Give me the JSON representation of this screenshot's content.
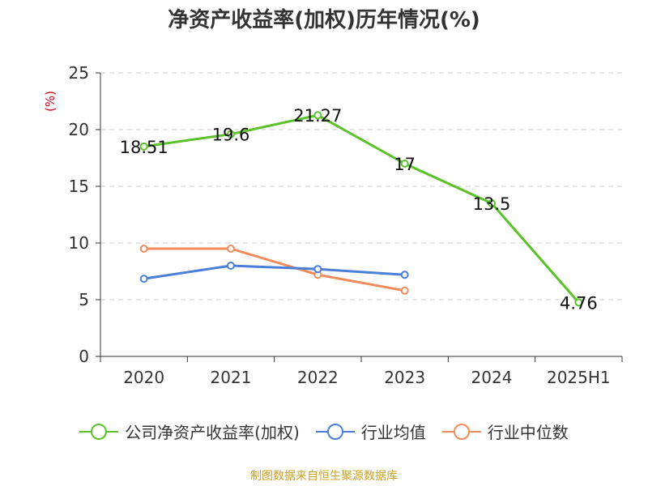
{
  "title": "净资产收益率(加权)历年情况(%)",
  "source": "制图数据来自恒生聚源数据库",
  "chart_data": {
    "type": "line",
    "title": "净资产收益率(加权)历年情况(%)",
    "ylabel": "(%)",
    "xlabel": "",
    "categories": [
      "2020",
      "2021",
      "2022",
      "2023",
      "2024",
      "2025H1"
    ],
    "ylim": [
      0,
      25
    ],
    "yticks": [
      0,
      5,
      10,
      15,
      20,
      25
    ],
    "grid": true,
    "legend_position": "bottom",
    "series": [
      {
        "name": "公司净资产收益率(加权)",
        "color": "#5cc229",
        "values": [
          18.51,
          19.6,
          21.27,
          17,
          13.5,
          4.76
        ],
        "labels": [
          "18.51",
          "19.6",
          "21.27",
          "17",
          "13.5",
          "4.76"
        ]
      },
      {
        "name": "行业均值",
        "color": "#4a7fd9",
        "values": [
          6.85,
          8.0,
          7.7,
          7.2,
          null,
          null
        ]
      },
      {
        "name": "行业中位数",
        "color": "#f28b5a",
        "values": [
          9.5,
          9.5,
          7.2,
          5.8,
          null,
          null
        ]
      }
    ]
  }
}
